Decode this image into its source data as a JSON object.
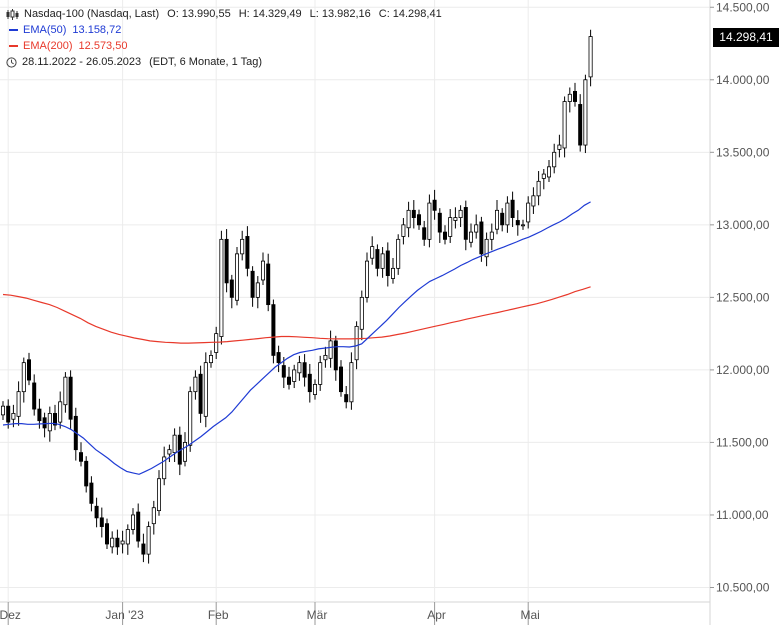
{
  "legend": {
    "instrument": "Nasdaq-100 (Nasdaq, Last)",
    "open_label": "O:",
    "open": "13.990,55",
    "high_label": "H:",
    "high": "14.329,49",
    "low_label": "L:",
    "low": "13.982,16",
    "close_label": "C:",
    "close": "14.298,41",
    "ema50_label": "EMA(50)",
    "ema50_value": "13.158,72",
    "ema200_label": "EMA(200)",
    "ema200_value": "12.573,50",
    "period": "28.11.2022 - 26.05.2023",
    "period_info": "(EDT, 6 Monate, 1 Tag)"
  },
  "price_badge": "14.298,41",
  "colors": {
    "ema50": "#1f3bd4",
    "ema200": "#e8392b",
    "candle": "#000000",
    "grid": "#ececec"
  },
  "chart_data": {
    "type": "candlestick",
    "ylim": [
      10400,
      14550
    ],
    "y_ticks": [
      {
        "value": 10500,
        "label": "10.500,00"
      },
      {
        "value": 11000,
        "label": "11.000,00"
      },
      {
        "value": 11500,
        "label": "11.500,00"
      },
      {
        "value": 12000,
        "label": "12.000,00"
      },
      {
        "value": 12500,
        "label": "12.500,00"
      },
      {
        "value": 13000,
        "label": "13.000,00"
      },
      {
        "value": 13500,
        "label": "13.500,00"
      },
      {
        "value": 14000,
        "label": "14.000,00"
      },
      {
        "value": 14500,
        "label": "14.500,00"
      }
    ],
    "x_labels": [
      {
        "index": 1,
        "label": "Dez"
      },
      {
        "index": 23,
        "label": "Jan '23"
      },
      {
        "index": 41,
        "label": "Feb"
      },
      {
        "index": 60,
        "label": "Mär"
      },
      {
        "index": 83,
        "label": "Apr"
      },
      {
        "index": 101,
        "label": "Mai"
      }
    ],
    "closes": [
      11750,
      11640,
      11700,
      11850,
      12050,
      11930,
      11730,
      11650,
      11600,
      11700,
      11620,
      11780,
      11950,
      11660,
      11450,
      11370,
      11200,
      11080,
      10980,
      10920,
      10800,
      10840,
      10780,
      10820,
      10900,
      11000,
      10820,
      10730,
      10920,
      11050,
      11250,
      11400,
      11450,
      11550,
      11350,
      11500,
      11850,
      11950,
      11700,
      12050,
      12100,
      12250,
      12900,
      12600,
      12500,
      12800,
      12900,
      12700,
      12500,
      12600,
      12750,
      12450,
      12100,
      12050,
      11950,
      11900,
      12000,
      12050,
      11950,
      11850,
      11900,
      12050,
      12100,
      12200,
      12000,
      11850,
      11780,
      12050,
      12300,
      12500,
      12750,
      12850,
      12700,
      12800,
      12650,
      12700,
      12900,
      13000,
      13100,
      13050,
      13000,
      12900,
      13150,
      13100,
      12950,
      12900,
      13050,
      13050,
      13100,
      12900,
      12950,
      13000,
      12800,
      12900,
      12950,
      13100,
      13000,
      13150,
      13050,
      13000,
      13000,
      13150,
      13200,
      13300,
      13350,
      13400,
      13500,
      13550,
      13850,
      13900,
      13850,
      13550,
      14000,
      14298
    ],
    "ema50": [
      11620,
      11625,
      11630,
      11630,
      11625,
      11625,
      11628,
      11630,
      11632,
      11625,
      11610,
      11590,
      11560,
      11530,
      11490,
      11450,
      11420,
      11390,
      11355,
      11325,
      11300,
      11290,
      11280,
      11300,
      11320,
      11345,
      11370,
      11400,
      11430,
      11455,
      11480,
      11510,
      11540,
      11575,
      11610,
      11640,
      11670,
      11710,
      11760,
      11810,
      11860,
      11900,
      11940,
      11980,
      12020,
      12050,
      12080,
      12105,
      12120,
      12128,
      12135,
      12145,
      12150,
      12155,
      12160,
      12160,
      12158,
      12165,
      12180,
      12220,
      12260,
      12300,
      12340,
      12385,
      12430,
      12470,
      12510,
      12548,
      12580,
      12610,
      12630,
      12650,
      12672,
      12695,
      12720,
      12740,
      12762,
      12780,
      12798,
      12815,
      12832,
      12848,
      12865,
      12882,
      12900,
      12915,
      12935,
      12955,
      12978,
      13000,
      13020,
      13045,
      13075,
      13100,
      13135,
      13158
    ],
    "ema200": [
      12520,
      12515,
      12505,
      12495,
      12480,
      12465,
      12450,
      12430,
      12405,
      12380,
      12355,
      12325,
      12300,
      12280,
      12260,
      12245,
      12232,
      12220,
      12210,
      12200,
      12195,
      12190,
      12188,
      12185,
      12185,
      12186,
      12188,
      12190,
      12192,
      12195,
      12200,
      12205,
      12210,
      12216,
      12222,
      12226,
      12230,
      12230,
      12228,
      12225,
      12222,
      12218,
      12215,
      12214,
      12214,
      12214,
      12216,
      12218,
      12222,
      12226,
      12234,
      12244,
      12254,
      12266,
      12278,
      12290,
      12302,
      12314,
      12326,
      12338,
      12350,
      12362,
      12374,
      12385,
      12396,
      12408,
      12420,
      12432,
      12444,
      12456,
      12470,
      12486,
      12503,
      12520,
      12540,
      12556,
      12573
    ]
  }
}
